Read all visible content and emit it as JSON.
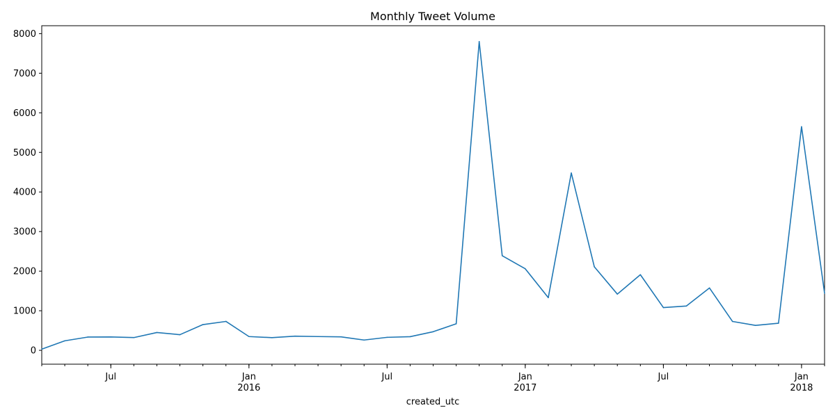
{
  "chart_data": {
    "type": "line",
    "title": "Monthly Tweet Volume",
    "xlabel": "created_utc",
    "ylabel": "",
    "ylim": [
      -350,
      8200
    ],
    "grid": false,
    "color": "#1f77b4",
    "x": [
      "2015-04",
      "2015-05",
      "2015-06",
      "2015-07",
      "2015-08",
      "2015-09",
      "2015-10",
      "2015-11",
      "2015-12",
      "2016-01",
      "2016-02",
      "2016-03",
      "2016-04",
      "2016-05",
      "2016-06",
      "2016-07",
      "2016-08",
      "2016-09",
      "2016-10",
      "2016-11",
      "2016-12",
      "2017-01",
      "2017-02",
      "2017-03",
      "2017-04",
      "2017-05",
      "2017-06",
      "2017-07",
      "2017-08",
      "2017-09",
      "2017-10",
      "2017-11",
      "2017-12",
      "2018-01",
      "2018-02"
    ],
    "values": [
      30,
      240,
      335,
      338,
      322,
      450,
      395,
      650,
      730,
      348,
      320,
      358,
      348,
      340,
      260,
      328,
      345,
      470,
      670,
      7800,
      2390,
      2060,
      1330,
      4480,
      2110,
      1420,
      1910,
      1080,
      1120,
      1575,
      730,
      630,
      685,
      5650,
      1440
    ],
    "yticks": [
      0,
      1000,
      2000,
      3000,
      4000,
      5000,
      6000,
      7000,
      8000
    ],
    "xticks_major": [
      {
        "x": "2015-07",
        "label": "Jul",
        "sublabel": ""
      },
      {
        "x": "2016-01",
        "label": "Jan",
        "sublabel": "2016"
      },
      {
        "x": "2016-07",
        "label": "Jul",
        "sublabel": ""
      },
      {
        "x": "2017-01",
        "label": "Jan",
        "sublabel": "2017"
      },
      {
        "x": "2017-07",
        "label": "Jul",
        "sublabel": ""
      },
      {
        "x": "2018-01",
        "label": "Jan",
        "sublabel": "2018"
      }
    ]
  }
}
